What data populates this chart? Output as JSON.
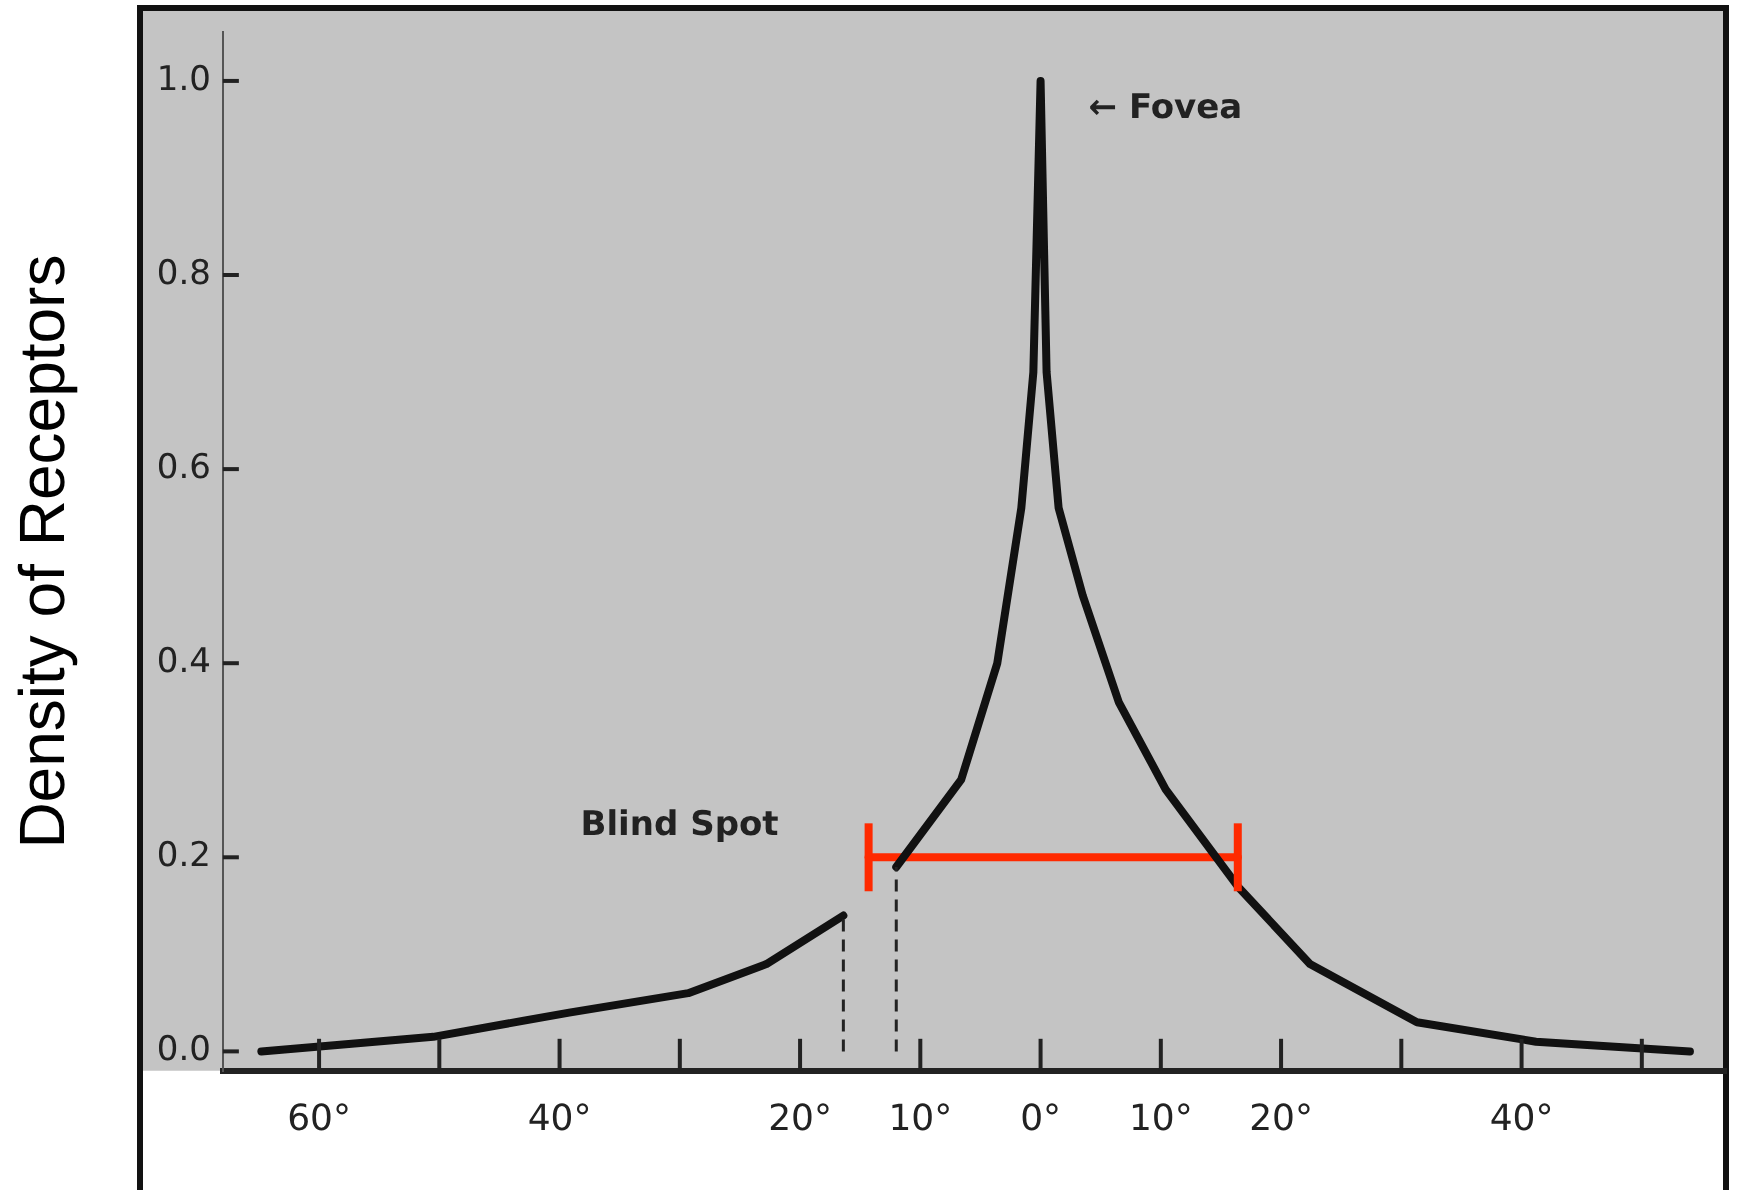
{
  "chart_data": {
    "type": "line",
    "ylabel": "Density of Receptors",
    "xlim": [
      -68,
      57
    ],
    "ylim": [
      -0.02,
      1.05
    ],
    "xticks": [
      {
        "value": -60,
        "label": "60°"
      },
      {
        "value": -50,
        "label": null
      },
      {
        "value": -40,
        "label": "40°"
      },
      {
        "value": -30,
        "label": null
      },
      {
        "value": -20,
        "label": "20°"
      },
      {
        "value": -10,
        "label": "10°"
      },
      {
        "value": 0,
        "label": "0°"
      },
      {
        "value": 10,
        "label": "10°"
      },
      {
        "value": 20,
        "label": "20°"
      },
      {
        "value": 30,
        "label": null
      },
      {
        "value": 40,
        "label": "40°"
      },
      {
        "value": 50,
        "label": null
      }
    ],
    "yticks": [
      {
        "value": 0,
        "label": "0.0"
      },
      {
        "value": 0.2,
        "label": "0.2"
      },
      {
        "value": 0.4,
        "label": "0.4"
      },
      {
        "value": 0.6,
        "label": "0.6"
      },
      {
        "value": 0.8,
        "label": "0.8"
      },
      {
        "value": 1,
        "label": "1.0"
      }
    ],
    "grid": false,
    "marker": "none",
    "line_style": "solid",
    "series": [
      {
        "color": "#111111",
        "x": [
          -64.8,
          -50.5,
          -39.2,
          -29.3,
          -22.8,
          -16.4,
          -14.2,
          -12,
          -6.6,
          -3.6,
          -1.6,
          -0.6,
          0,
          0.5,
          1.5,
          3.5,
          6.5,
          10.4,
          16.4,
          22.4,
          31.3,
          41.2,
          54
        ],
        "values": [
          0,
          0.015,
          0.04,
          0.06,
          0.09,
          0.14,
          null,
          0.19,
          0.28,
          0.4,
          0.56,
          0.7,
          1,
          0.7,
          0.56,
          0.47,
          0.36,
          0.27,
          0.17,
          0.09,
          0.03,
          0.01,
          0
        ]
      },
      {
        "color": "#ff2a00",
        "x": [
          -14.3,
          16.4
        ],
        "values": [
          0.2,
          0.2
        ],
        "errors": [
          0.035,
          0.035
        ]
      }
    ],
    "ref_lines": [
      {
        "axis": "x",
        "value": -16.4,
        "label": null,
        "line_style": "dashed",
        "color": "#222222"
      },
      {
        "axis": "x",
        "value": -12,
        "label": null,
        "line_style": "dashed",
        "color": "#222222"
      }
    ],
    "annotations": [
      {
        "text": "← Fovea",
        "x": 0,
        "y": 1
      },
      {
        "text": "Blind Spot",
        "x": -14.3,
        "y": 0.17
      }
    ]
  }
}
